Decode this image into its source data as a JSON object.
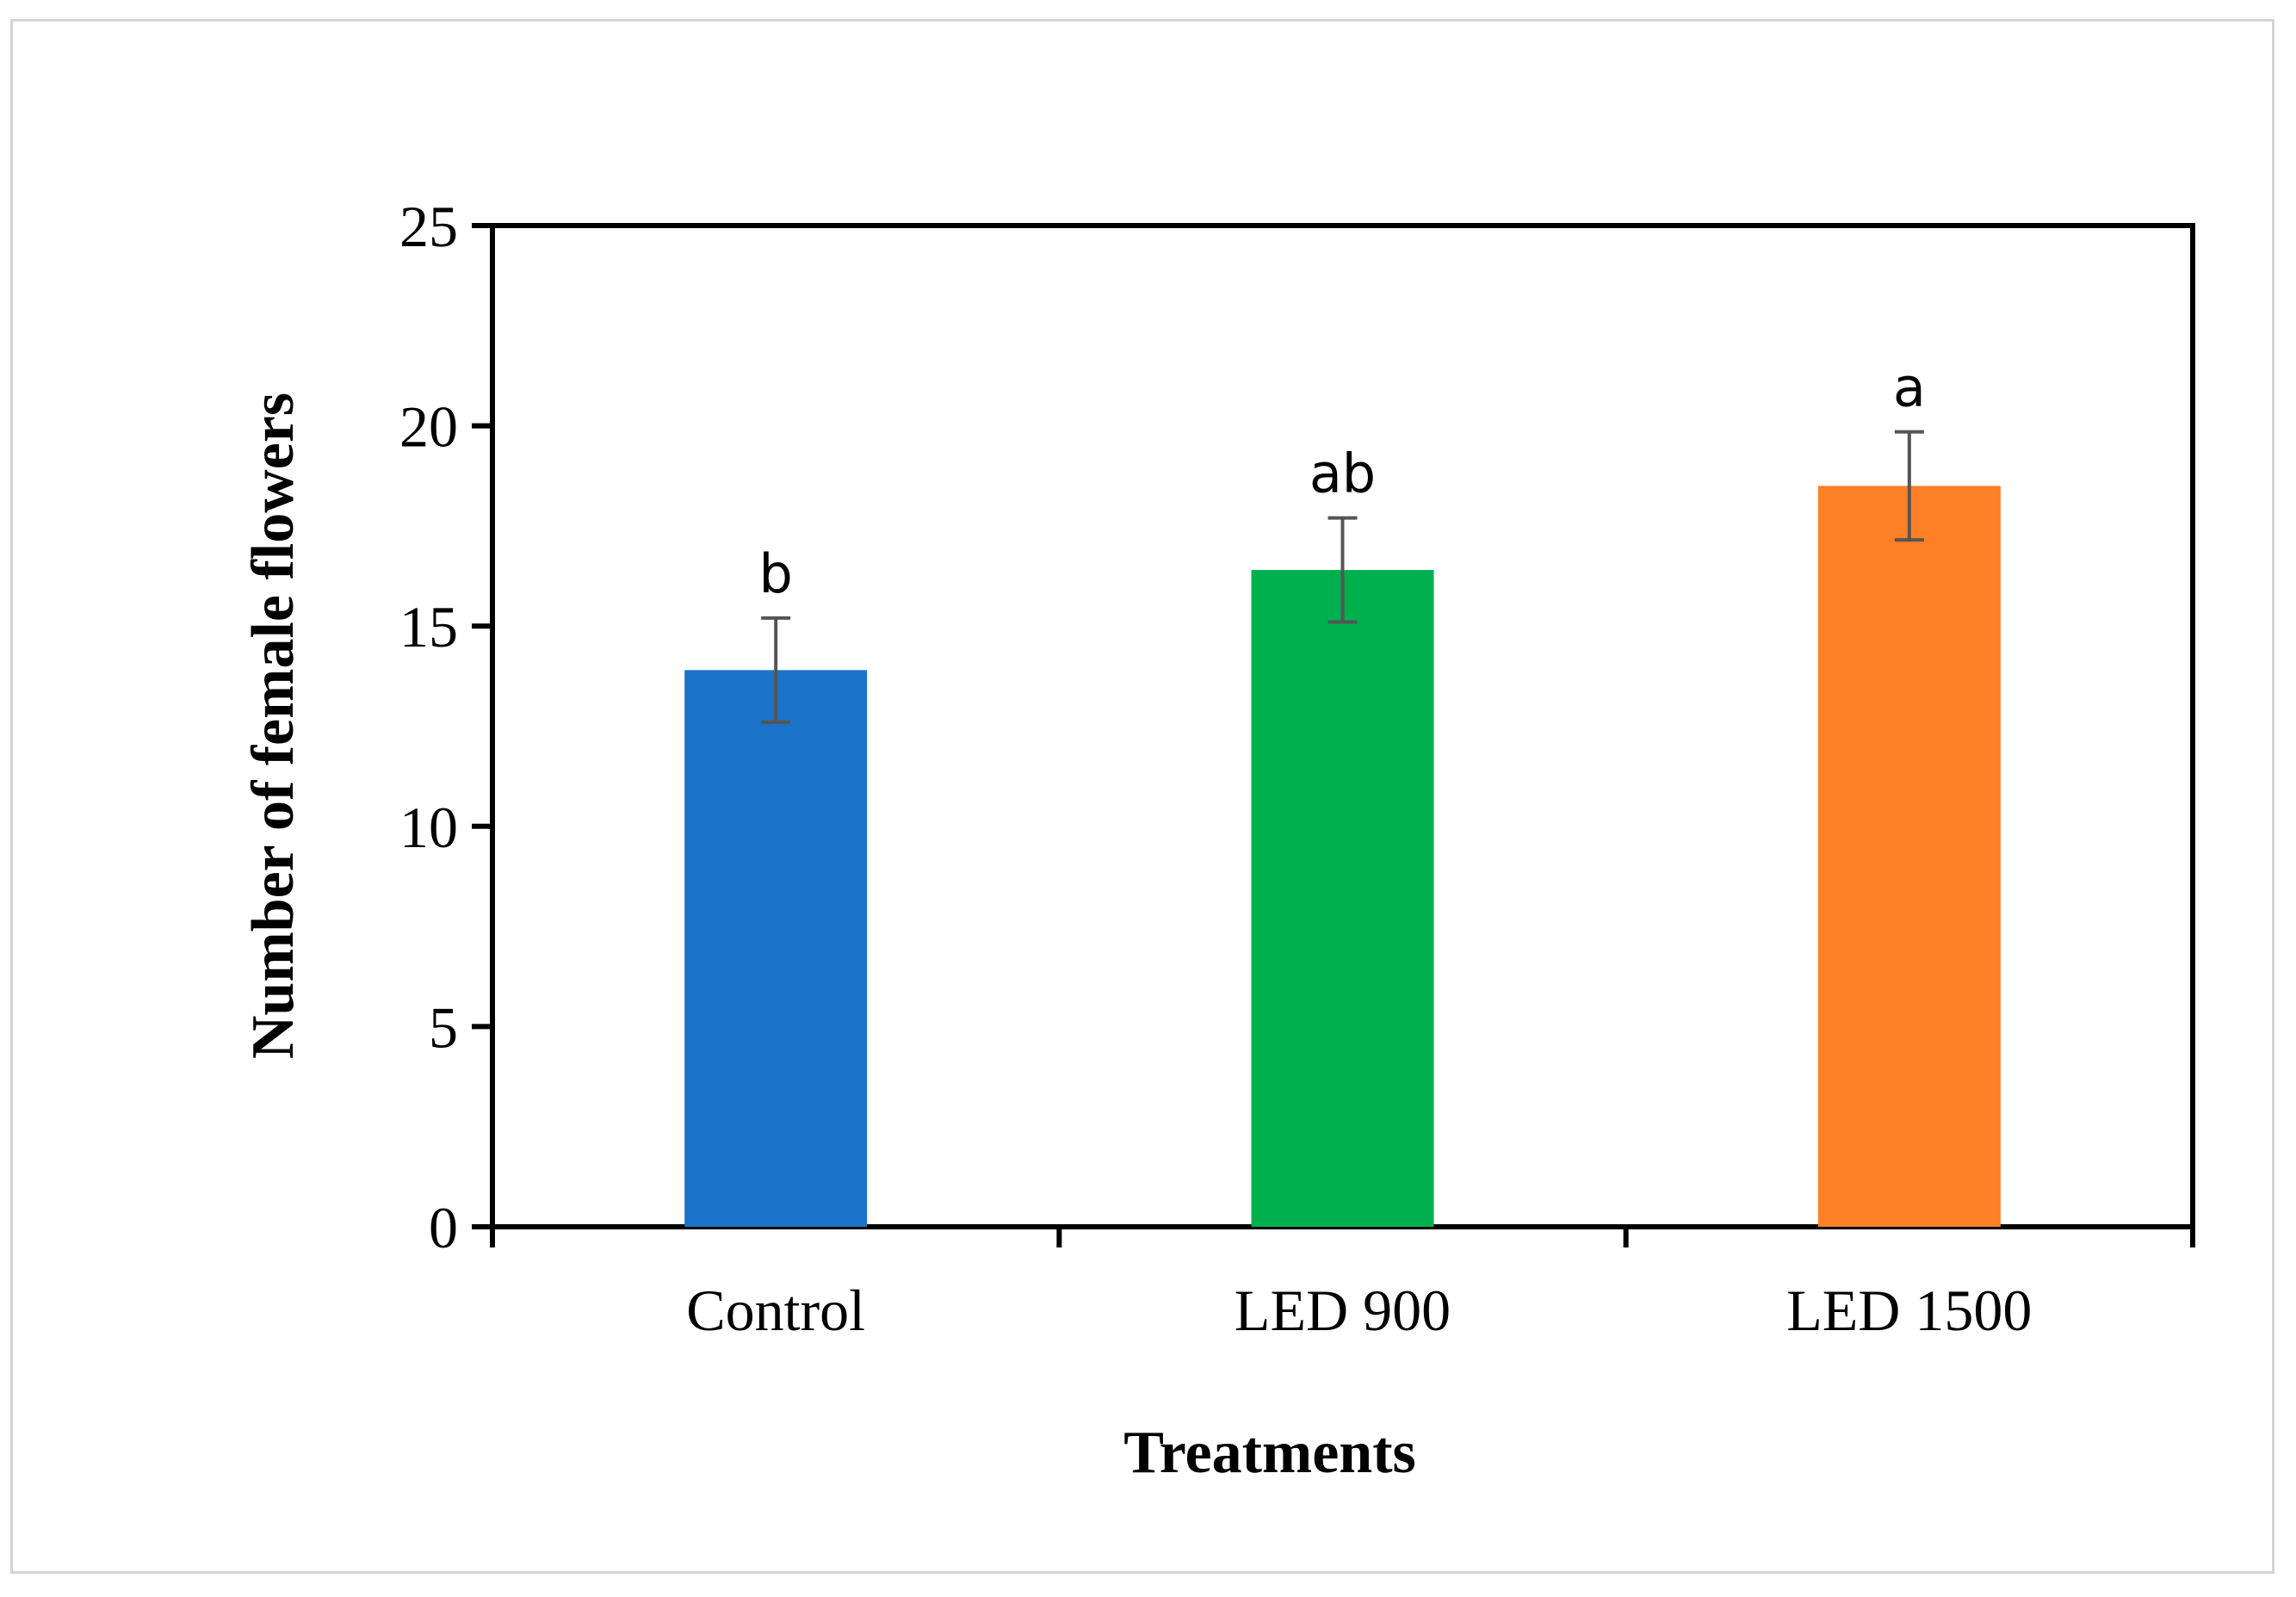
{
  "chart_data": {
    "type": "bar",
    "categories": [
      "Control",
      "LED 900",
      "LED 1500"
    ],
    "values": [
      13.9,
      16.4,
      18.5
    ],
    "errors": [
      1.3,
      1.3,
      1.35
    ],
    "significance_letters": [
      "b",
      "ab",
      "a"
    ],
    "colors": [
      "#1a73c8",
      "#00b04f",
      "#fd7f26"
    ],
    "xlabel": "Treatments",
    "ylabel": "Number of female flowers",
    "ylim": [
      0,
      25
    ],
    "yticks": [
      "0",
      "5",
      "10",
      "15",
      "20",
      "25"
    ],
    "grid": false,
    "legend": "none"
  }
}
